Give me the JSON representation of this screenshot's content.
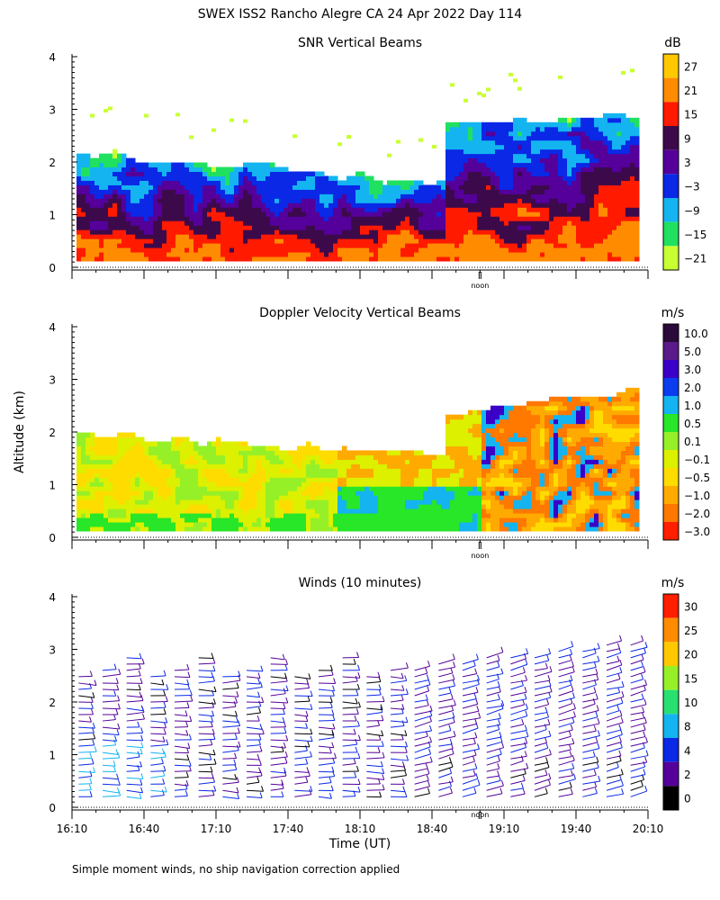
{
  "main_title": "SWEX ISS2 Rancho Alegre CA  24 Apr 2022 Day 114",
  "ylabel": "Altitude (km)",
  "xlabel": "Time (UT)",
  "footnote": "Simple moment winds, no ship navigation correction applied",
  "noon_label": "noon",
  "chart_data": [
    {
      "type": "heatmap",
      "title": "SNR Vertical Beams",
      "units": "dB",
      "ylim": [
        0,
        4
      ],
      "yticks": [
        "0",
        "1",
        "2",
        "3",
        "4"
      ],
      "xlim_minutes": [
        0,
        240
      ],
      "colorbar": {
        "labels": [
          "27",
          "21",
          "15",
          "9",
          "3",
          "−3",
          "−9",
          "−15",
          "−21"
        ],
        "colors": [
          "#ffc800",
          "#ff8c00",
          "#ff1a00",
          "#3c0a4b",
          "#55009a",
          "#0a28e6",
          "#14b4f0",
          "#20e060",
          "#c8ff32"
        ]
      },
      "description_levels": {
        "low_altitude_km": [
          0.1,
          1.0
        ],
        "echo_top_km_start": 2.1,
        "echo_top_km_end": 2.9
      }
    },
    {
      "type": "heatmap",
      "title": "Doppler Velocity Vertical Beams",
      "units": "m/s",
      "ylim": [
        0,
        4
      ],
      "yticks": [
        "0",
        "1",
        "2",
        "3",
        "4"
      ],
      "xlim_minutes": [
        0,
        240
      ],
      "colorbar": {
        "labels": [
          "10.0",
          "5.0",
          "3.0",
          "2.0",
          "1.0",
          "0.5",
          "0.1",
          "−0.1",
          "−0.5",
          "−1.0",
          "−2.0",
          "−3.0"
        ],
        "colors": [
          "#2a0a3a",
          "#5a1a8a",
          "#3a00c8",
          "#0a3cf0",
          "#14b4f0",
          "#28e628",
          "#96f028",
          "#dcf000",
          "#ffdc00",
          "#ffaa00",
          "#ff7800",
          "#ff1e00"
        ]
      }
    },
    {
      "type": "barbs",
      "title": "Winds (10 minutes)",
      "units": "m/s",
      "ylim": [
        0,
        4
      ],
      "yticks": [
        "0",
        "1",
        "2",
        "3",
        "4"
      ],
      "x": [
        "16:10",
        "16:40",
        "17:10",
        "17:40",
        "18:10",
        "18:40",
        "19:10",
        "19:40",
        "20:10"
      ],
      "profile_times_min": [
        5,
        15,
        25,
        35,
        45,
        55,
        65,
        75,
        85,
        95,
        105,
        115,
        125,
        135,
        145,
        155,
        165,
        175,
        185,
        195,
        205,
        215,
        225,
        235
      ],
      "colorbar": {
        "labels": [
          "30",
          "25",
          "20",
          "15",
          "10",
          "8",
          "4",
          "2",
          "0"
        ],
        "colors": [
          "#ff1e00",
          "#ff8c00",
          "#ffc800",
          "#96f028",
          "#28e070",
          "#14b4f0",
          "#0a28e6",
          "#55009a",
          "#000000"
        ]
      }
    }
  ]
}
